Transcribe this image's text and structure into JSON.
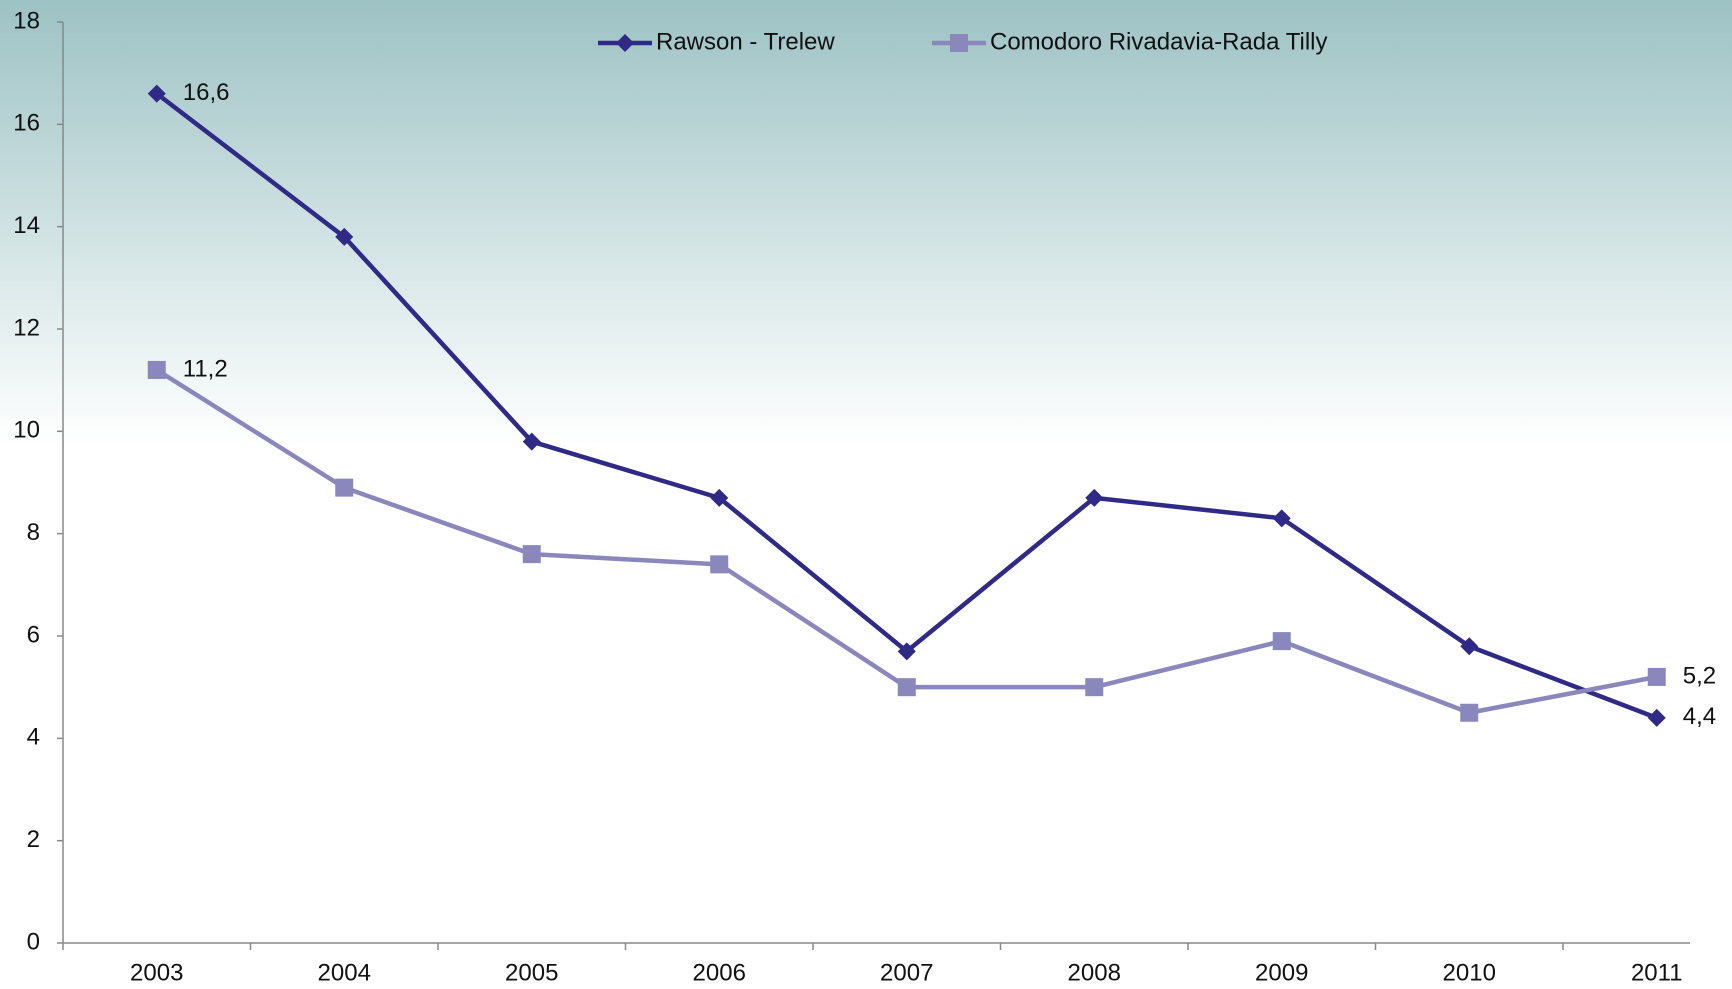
{
  "chart_data": {
    "type": "line",
    "categories": [
      "2003",
      "2004",
      "2005",
      "2006",
      "2007",
      "2008",
      "2009",
      "2010",
      "2011"
    ],
    "series": [
      {
        "name": "Rawson - Trelew",
        "color": "#2e2a85",
        "marker": "diamond",
        "values": [
          16.6,
          13.8,
          9.8,
          8.7,
          5.7,
          8.7,
          8.3,
          5.8,
          4.4
        ],
        "value_labels": [
          "16,6",
          null,
          null,
          null,
          null,
          null,
          null,
          null,
          "4,4"
        ]
      },
      {
        "name": "Comodoro Rivadavia-Rada Tilly",
        "color": "#8a87bc",
        "marker": "square",
        "values": [
          11.2,
          8.9,
          7.6,
          7.4,
          5.0,
          5.0,
          5.9,
          4.5,
          5.2
        ],
        "value_labels": [
          "11,2",
          null,
          null,
          null,
          null,
          null,
          null,
          null,
          "5,2"
        ]
      }
    ],
    "ylim": [
      0,
      18
    ],
    "yticks": [
      0,
      2,
      4,
      6,
      8,
      10,
      12,
      14,
      16,
      18
    ],
    "legend": "top"
  }
}
